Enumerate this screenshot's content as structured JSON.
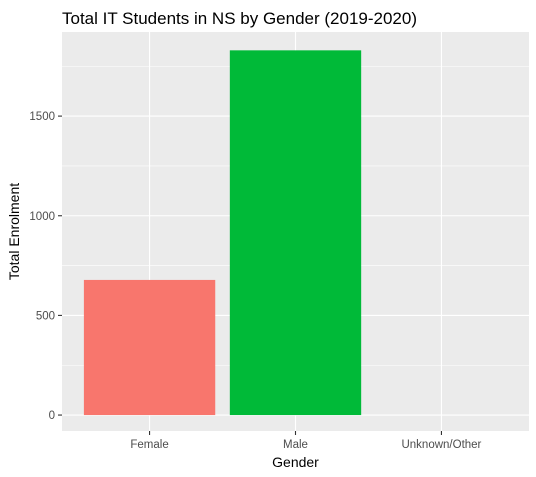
{
  "chart_data": {
    "type": "bar",
    "title": "Total IT Students in NS by Gender (2019-2020)",
    "xlabel": "Gender",
    "ylabel": "Total Enrolment",
    "categories": [
      "Female",
      "Male",
      "Unknown/Other"
    ],
    "values": [
      678,
      1830,
      0
    ],
    "bar_colors": [
      "#F8766D",
      "#00BA38",
      "#619CFF"
    ],
    "ylim": [
      -80,
      1922
    ],
    "yticks": [
      0,
      500,
      1000,
      1500
    ],
    "ytick_labels": [
      "0",
      "500",
      "1000",
      "1500"
    ],
    "grid": true,
    "legend": "none",
    "panel_background": "#EBEBEB",
    "grid_color": "#FFFFFF"
  }
}
